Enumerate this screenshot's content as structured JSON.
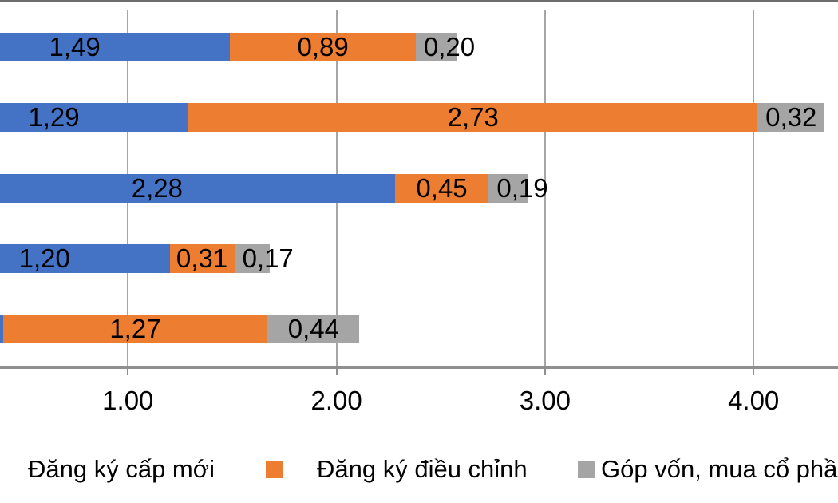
{
  "chart_data": {
    "type": "bar",
    "orientation": "horizontal",
    "stacked": true,
    "title": "",
    "categories": [
      "",
      "",
      "",
      "",
      ""
    ],
    "series": [
      {
        "name": "Đăng ký cấp mới",
        "color": "#4472C4",
        "values": [
          1.49,
          1.29,
          2.28,
          1.2,
          0.4
        ],
        "labels": [
          "1,49",
          "1,29",
          "2,28",
          "1,20",
          ""
        ]
      },
      {
        "name": "Đăng ký điều chỉnh",
        "color": "#ED7D31",
        "values": [
          0.89,
          2.73,
          0.45,
          0.31,
          1.27
        ],
        "labels": [
          "0,89",
          "2,73",
          "0,45",
          "0,31",
          "1,27"
        ]
      },
      {
        "name": "Góp vốn, mua cổ phần",
        "color": "#A5A5A5",
        "values": [
          0.2,
          0.32,
          0.19,
          0.17,
          0.44
        ],
        "labels": [
          "0,20",
          "0,32",
          "0,19",
          "0,17",
          "0,44"
        ]
      }
    ],
    "x_axis": {
      "tick_values": [
        1,
        2,
        3,
        4
      ],
      "tick_labels": [
        "1.00",
        "2.00",
        "3.00",
        "4.00"
      ],
      "grid": true
    },
    "legend": {
      "position": "bottom",
      "items": [
        {
          "label": "Đăng ký cấp mới",
          "color": "#4472C4",
          "swatch_visible": false
        },
        {
          "label": "Đăng ký điều chỉnh",
          "color": "#ED7D31",
          "swatch_visible": true
        },
        {
          "label": "Góp vốn, mua cổ phần",
          "color": "#A5A5A5",
          "swatch_visible": true
        }
      ]
    }
  },
  "colors": {
    "background": "#FFFFFF",
    "series_blue": "#4472C4",
    "series_orange": "#ED7D31",
    "series_gray": "#A5A5A5",
    "gridline": "#A6A6A6",
    "axis_line": "#8F8F8F",
    "top_border": "#6E6E6E",
    "text": "#000000"
  }
}
